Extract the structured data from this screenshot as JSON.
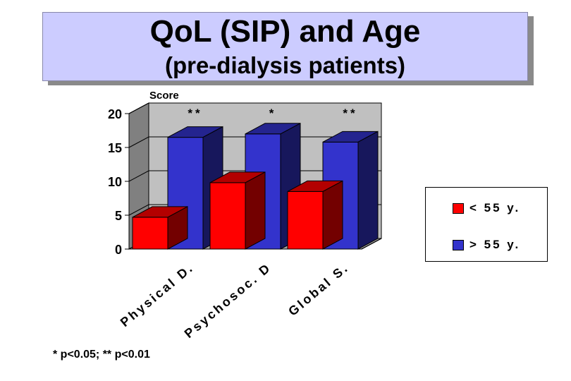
{
  "title": "QoL (SIP) and Age",
  "subtitle": "(pre-dialysis patients)",
  "footnote": "* p<0.05; ** p<0.01",
  "chart_data": {
    "type": "bar",
    "categories": [
      "Physical D.",
      "Psychosoc. D",
      "Global S."
    ],
    "series": [
      {
        "name": "< 55 y.",
        "values": [
          4.7,
          9.8,
          8.5
        ],
        "color": "#ff0000"
      },
      {
        "name": "> 55 y.",
        "values": [
          16.5,
          17.0,
          15.8
        ],
        "color": "#3333cc"
      }
    ],
    "significance": [
      "**",
      "*",
      "**"
    ],
    "ylabel": "Score",
    "ylim": [
      0,
      20
    ],
    "yticks": [
      0,
      5,
      10,
      15,
      20
    ],
    "grid": true,
    "legend_position": "right"
  }
}
